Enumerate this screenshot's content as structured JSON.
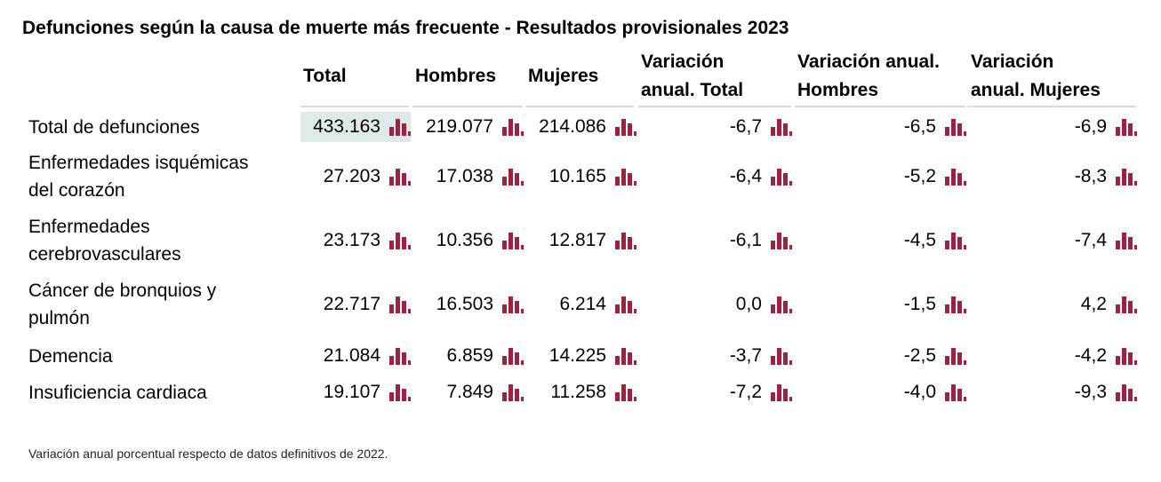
{
  "title": "Defunciones según la causa de muerte más frecuente - Resultados provisionales 2023",
  "columns": [
    {
      "label": "Total"
    },
    {
      "label": "Hombres"
    },
    {
      "label": "Mujeres"
    },
    {
      "label_line1": "Variación",
      "label_line2": "anual. Total"
    },
    {
      "label_line1": "Variación anual.",
      "label_line2": "Hombres"
    },
    {
      "label_line1": "Variación",
      "label_line2": "anual. Mujeres"
    }
  ],
  "rows": [
    {
      "label_line1": "Total de defunciones",
      "label_line2": "",
      "values": [
        "433.163",
        "219.077",
        "214.086",
        "-6,7",
        "-6,5",
        "-6,9"
      ]
    },
    {
      "label_line1": "Enfermedades isquémicas",
      "label_line2": "del corazón",
      "values": [
        "27.203",
        "17.038",
        "10.165",
        "-6,4",
        "-5,2",
        "-8,3"
      ]
    },
    {
      "label_line1": "Enfermedades",
      "label_line2": "cerebrovasculares",
      "values": [
        "23.173",
        "10.356",
        "12.817",
        "-6,1",
        "-4,5",
        "-7,4"
      ]
    },
    {
      "label_line1": "Cáncer de bronquios y",
      "label_line2": "pulmón",
      "values": [
        "22.717",
        "16.503",
        "6.214",
        "0,0",
        "-1,5",
        "4,2"
      ]
    },
    {
      "label_line1": "Demencia",
      "label_line2": "",
      "values": [
        "21.084",
        "6.859",
        "14.225",
        "-3,7",
        "-2,5",
        "-4,2"
      ]
    },
    {
      "label_line1": "Insuficiencia cardiaca",
      "label_line2": "",
      "values": [
        "19.107",
        "7.849",
        "11.258",
        "-7,2",
        "-4,0",
        "-9,3"
      ]
    }
  ],
  "footnote": "Variación anual porcentual respecto de datos definitivos de 2022.",
  "icons": {
    "chart": "bar-chart-icon"
  },
  "colors": {
    "icon": "#a0203f",
    "highlight": "#dfe9e9",
    "rule": "#d9d9d9"
  }
}
